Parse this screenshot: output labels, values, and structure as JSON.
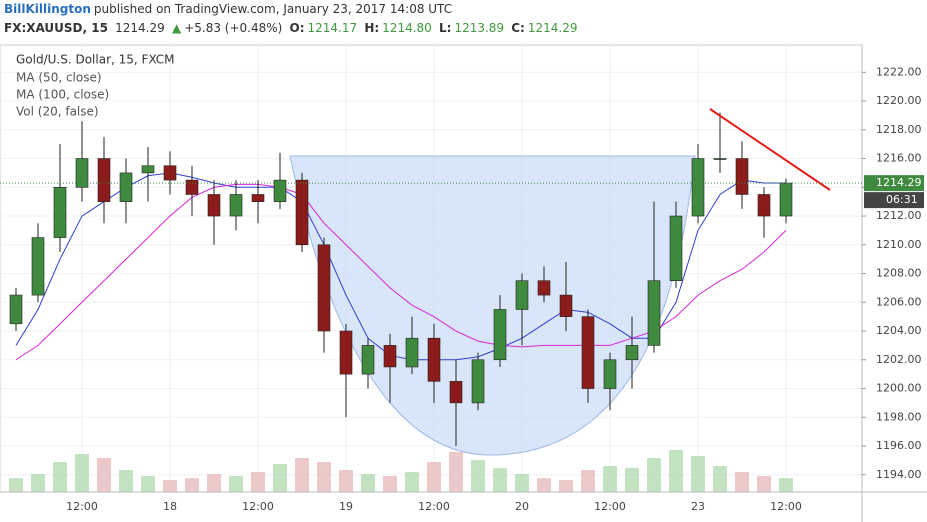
{
  "header": {
    "author": "BillKillington",
    "published": "published on TradingView.com, January 23, 2017 14:08 UTC",
    "symbol": "FX:XAUUSD, 15",
    "price": "1214.29",
    "arrow": "▲",
    "change": "+5.83 (+0.48%)",
    "o_label": "O:",
    "o": "1214.17",
    "h_label": "H:",
    "h": "1214.80",
    "l_label": "L:",
    "l": "1213.89",
    "c_label": "C:",
    "c": "1214.29"
  },
  "chart_data": {
    "type": "candlestick",
    "title": "Gold/U.S. Dollar, 15, FXCM",
    "categories": [
      null,
      null,
      null,
      "12:00",
      null,
      null,
      null,
      "18",
      null,
      null,
      null,
      "12:00",
      null,
      null,
      null,
      "19",
      null,
      null,
      null,
      "12:00",
      null,
      null,
      null,
      "20",
      null,
      null,
      null,
      "12:00",
      null,
      null,
      null,
      "23",
      null,
      null,
      null,
      "12:00"
    ],
    "open": [
      1204.5,
      1206.5,
      1210.5,
      1214,
      1216,
      1213,
      1215,
      1215.5,
      1214.5,
      1213.5,
      1212,
      1213.5,
      1213,
      1214.5,
      1210,
      1204,
      1201,
      1203,
      1201.5,
      1203.5,
      1200.5,
      1199,
      1202,
      1205.5,
      1207.5,
      1206.5,
      1205,
      1200,
      1202,
      1203,
      1207.5,
      1212,
      1216,
      1216,
      1213.5,
      1212
    ],
    "high": [
      1207,
      1211.5,
      1217,
      1218.6,
      1217.5,
      1216,
      1216.8,
      1216.5,
      1215.5,
      1214.5,
      1214.5,
      1214.5,
      1216.4,
      1215,
      1210.5,
      1204.5,
      1203.5,
      1203.8,
      1205,
      1204.5,
      1202,
      1202.5,
      1206.5,
      1208,
      1208.5,
      1208.8,
      1205.5,
      1202.5,
      1205,
      1213,
      1213,
      1217,
      1219.2,
      1217.2,
      1214,
      1214.6
    ],
    "low": [
      1204,
      1206,
      1209.5,
      1213,
      1211.5,
      1211.5,
      1213,
      1213.5,
      1212,
      1210,
      1211,
      1211.5,
      1212.5,
      1209.5,
      1202.5,
      1198,
      1200,
      1199,
      1201,
      1199,
      1196,
      1198.5,
      1201.5,
      1203,
      1206,
      1204,
      1199,
      1198.5,
      1200,
      1202.5,
      1207,
      1211.5,
      1215,
      1212.5,
      1210.5,
      1211.5
    ],
    "close": [
      1206.5,
      1210.5,
      1214,
      1216,
      1213,
      1215,
      1215.5,
      1214.5,
      1213.5,
      1212,
      1213.5,
      1213,
      1214.5,
      1210,
      1204,
      1201,
      1203,
      1201.5,
      1203.5,
      1200.5,
      1199,
      1202,
      1205.5,
      1207.5,
      1206.5,
      1205,
      1200,
      1202,
      1203,
      1207.5,
      1212,
      1216,
      1216,
      1213.5,
      1212,
      1214.29
    ],
    "volume": {
      "name": "Vol (20, false)",
      "values": [
        14,
        18,
        30,
        38,
        34,
        22,
        16,
        12,
        14,
        18,
        16,
        20,
        28,
        34,
        30,
        22,
        18,
        16,
        20,
        30,
        40,
        32,
        24,
        18,
        14,
        12,
        22,
        26,
        24,
        34,
        42,
        36,
        26,
        20,
        16,
        14
      ]
    },
    "series": [
      {
        "name": "MA (50, close)",
        "color": "#2f3fd0",
        "values": [
          1203,
          1205.5,
          1209,
          1212,
          1213,
          1214,
          1214.8,
          1215,
          1214.7,
          1214.3,
          1214,
          1214,
          1214,
          1213,
          1210,
          1206.5,
          1203.5,
          1202.3,
          1202,
          1202,
          1202,
          1202.2,
          1202.8,
          1203.5,
          1204.5,
          1205.5,
          1205.3,
          1204.5,
          1203.5,
          1203.5,
          1206,
          1211,
          1213.5,
          1214.5,
          1214.3,
          1214.3
        ]
      },
      {
        "name": "MA (100, close)",
        "color": "#d824d8",
        "values": [
          1202,
          1203,
          1204.5,
          1206,
          1207.5,
          1209,
          1210.5,
          1212,
          1213.3,
          1214,
          1214.2,
          1214.2,
          1214,
          1213.5,
          1211.5,
          1210,
          1208.5,
          1207,
          1205.8,
          1205,
          1204,
          1203.3,
          1203,
          1202.9,
          1203,
          1203,
          1203,
          1203,
          1203.5,
          1204,
          1205,
          1206.5,
          1207.5,
          1208.3,
          1209.5,
          1211
        ]
      }
    ],
    "up_color": "#3f8a3f",
    "down_color": "#8c1c1c",
    "ylim": [
      1192.8,
      1223.9
    ],
    "yticks": [
      {
        "value": 1194,
        "label": "1194.00"
      },
      {
        "value": 1196,
        "label": "1196.00"
      },
      {
        "value": 1198,
        "label": "1198.00"
      },
      {
        "value": 1200,
        "label": "1200.00"
      },
      {
        "value": 1202,
        "label": "1202.00"
      },
      {
        "value": 1204,
        "label": "1204.00"
      },
      {
        "value": 1206,
        "label": "1206.00"
      },
      {
        "value": 1208,
        "label": "1208.00"
      },
      {
        "value": 1210,
        "label": "1210.00"
      },
      {
        "value": 1212,
        "label": "1212.00"
      },
      {
        "value": 1214,
        "label": "1214.00"
      },
      {
        "value": 1216,
        "label": "1216.00"
      },
      {
        "value": 1218,
        "label": "1218.00"
      },
      {
        "value": 1220,
        "label": "1220.00"
      },
      {
        "value": 1222,
        "label": "1222.00"
      }
    ],
    "grid": true,
    "last_price": 1214.29,
    "countdown": "06:31"
  }
}
